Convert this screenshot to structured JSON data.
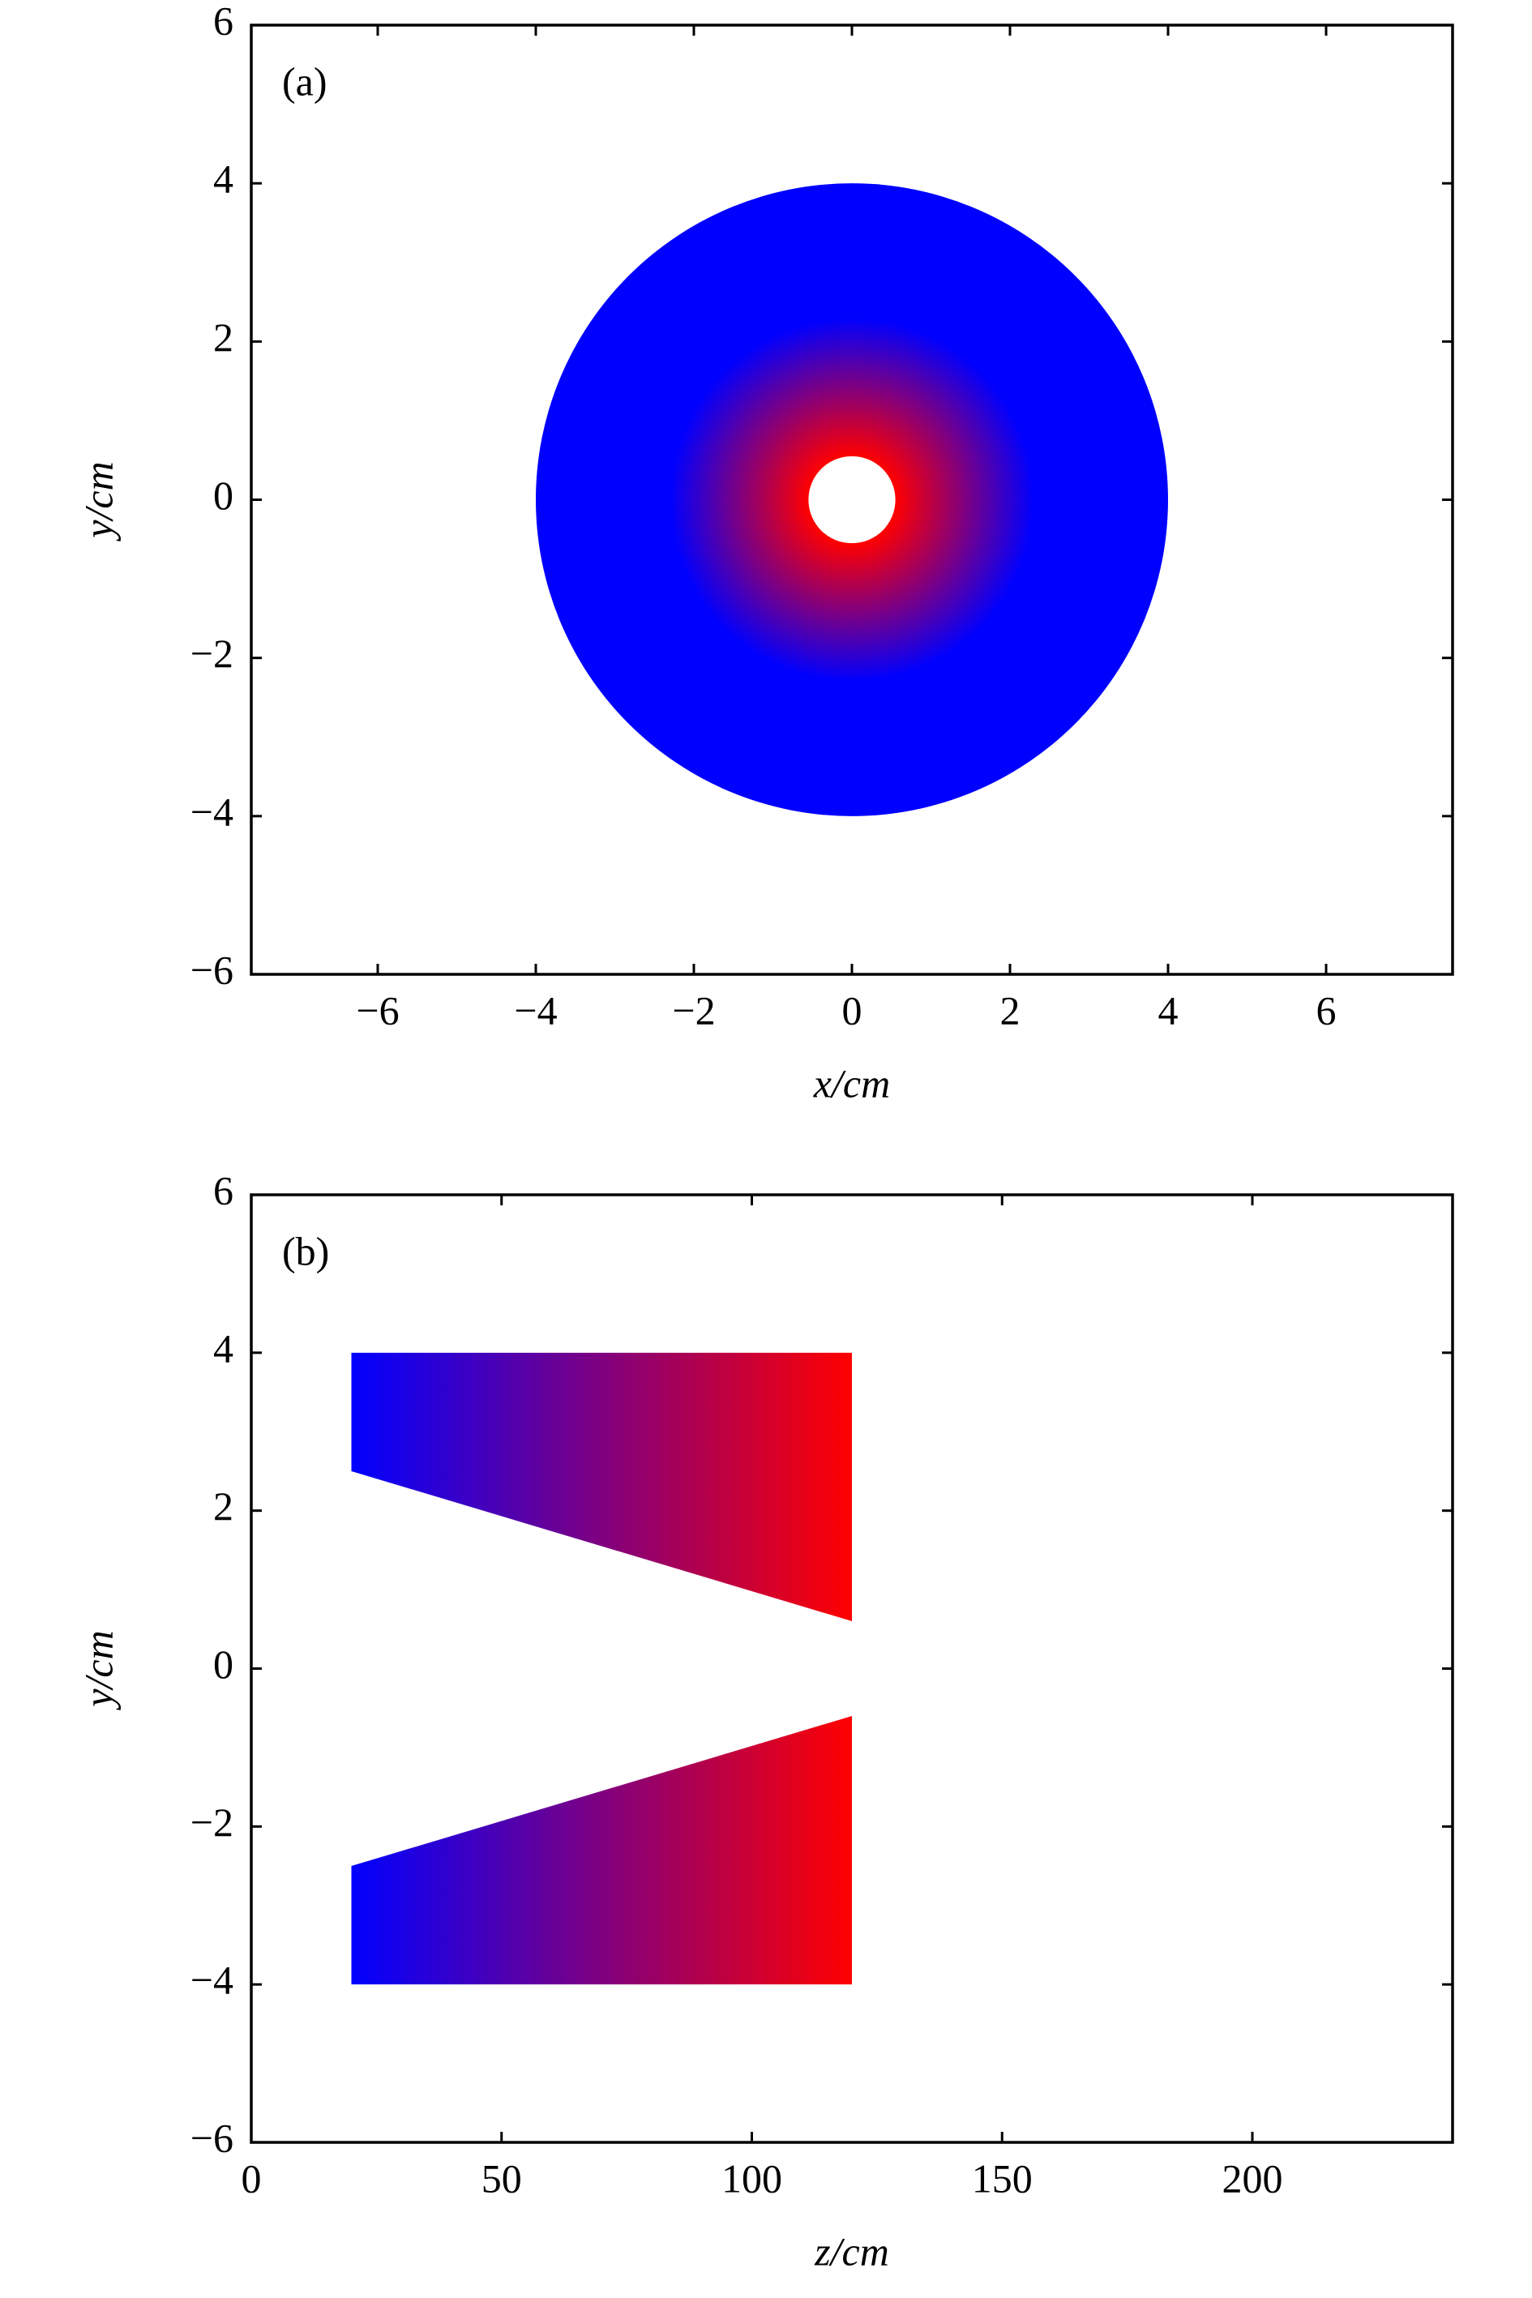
{
  "chart_data": [
    {
      "type": "annulus",
      "label": "(a)",
      "xlabel": "x/cm",
      "ylabel": "y/cm",
      "xlim": [
        -7.6,
        7.6
      ],
      "ylim": [
        -6,
        6
      ],
      "xticks": [
        {
          "value": -6,
          "label": "−6"
        },
        {
          "value": -4,
          "label": "−4"
        },
        {
          "value": -2,
          "label": "−2"
        },
        0,
        2,
        4,
        6
      ],
      "yticks": [
        {
          "value": -6,
          "label": "−6"
        },
        {
          "value": -4,
          "label": "−4"
        },
        {
          "value": -2,
          "label": "−2"
        },
        0,
        2,
        4,
        6
      ],
      "center": [
        0,
        0
      ],
      "outer_radius": 4,
      "inner_radius": 0.55,
      "gradient_end_radius": 2.3,
      "inner_color": "#ff0000",
      "outer_color": "#0000ff"
    },
    {
      "type": "polygons",
      "label": "(b)",
      "xlabel": "z/cm",
      "ylabel": "y/cm",
      "xlim": [
        0,
        240
      ],
      "ylim": [
        -6,
        6
      ],
      "xticks": [
        0,
        50,
        100,
        150,
        200
      ],
      "yticks": [
        {
          "value": -6,
          "label": "−6"
        },
        {
          "value": -4,
          "label": "−4"
        },
        {
          "value": -2,
          "label": "−2"
        },
        0,
        2,
        4,
        6
      ],
      "shapes": [
        {
          "points": [
            [
              20,
              4
            ],
            [
              120,
              4
            ],
            [
              120,
              0.6
            ],
            [
              20,
              2.5
            ]
          ]
        },
        {
          "points": [
            [
              20,
              -4
            ],
            [
              120,
              -4
            ],
            [
              120,
              -0.6
            ],
            [
              20,
              -2.5
            ]
          ]
        }
      ],
      "start_color": "#0000ff",
      "end_color": "#ff0000"
    }
  ]
}
